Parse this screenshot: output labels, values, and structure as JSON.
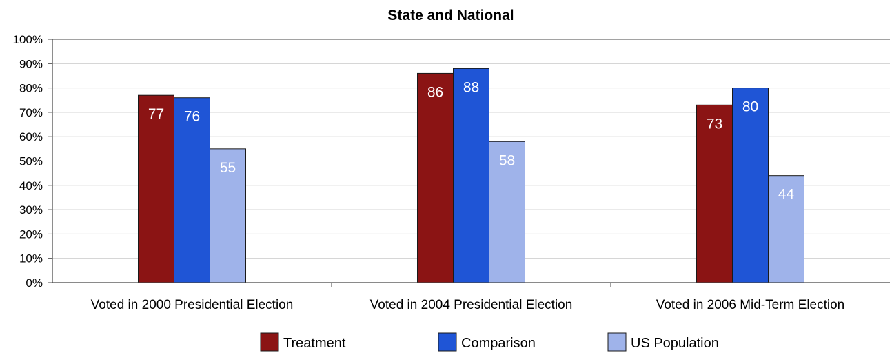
{
  "chart_data": {
    "type": "bar",
    "title": "State and National",
    "categories": [
      "Voted in 2000 Presidential Election",
      "Voted in 2004 Presidential Election",
      "Voted in 2006 Mid-Term Election"
    ],
    "series": [
      {
        "name": "Treatment",
        "values": [
          77,
          86,
          73
        ],
        "color": "#8b1414"
      },
      {
        "name": "Comparison",
        "values": [
          76,
          88,
          80
        ],
        "color": "#1f55d6"
      },
      {
        "name": "US Population",
        "values": [
          55,
          58,
          44
        ],
        "color": "#9fb3ea"
      }
    ],
    "y_ticks": [
      "0%",
      "10%",
      "20%",
      "30%",
      "40%",
      "50%",
      "60%",
      "70%",
      "80%",
      "90%",
      "100%"
    ],
    "ylim": [
      0,
      100
    ],
    "grid": true,
    "legend_position": "bottom",
    "data_labels": true
  }
}
